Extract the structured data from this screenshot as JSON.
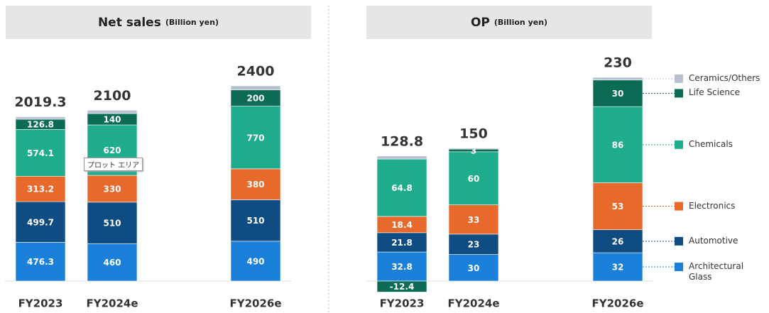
{
  "legend": {
    "items": [
      {
        "name": "Architectural Glass",
        "color": "#1a80d9"
      },
      {
        "name": "Automotive",
        "color": "#0f4c81"
      },
      {
        "name": "Electronics",
        "color": "#e8692c"
      },
      {
        "name": "Chemicals",
        "color": "#1fac8c"
      },
      {
        "name": "Life Science",
        "color": "#0b6b54"
      },
      {
        "name": "Ceramics/Others",
        "color": "#b9bfcf",
        "labeled": false
      }
    ]
  },
  "tooltip": "プロット エリア",
  "chart_data": [
    {
      "type": "bar",
      "stacked": true,
      "title": "Net sales",
      "subtitle": "(Billion yen)",
      "categories": [
        "FY2023",
        "FY2024e",
        "FY2026e"
      ],
      "totals": [
        2019.3,
        2100,
        2400
      ],
      "series": [
        {
          "values": [
            476.3,
            460,
            490
          ]
        },
        {
          "values": [
            499.7,
            510,
            510
          ]
        },
        {
          "values": [
            313.2,
            330,
            380
          ]
        },
        {
          "values": [
            574.1,
            620,
            770
          ]
        },
        {
          "values": [
            126.8,
            140,
            200
          ]
        },
        {
          "values": [
            29.2,
            40,
            50
          ]
        }
      ]
    },
    {
      "type": "bar",
      "stacked": true,
      "title": "OP",
      "subtitle": "(Billion yen)",
      "categories": [
        "FY2023",
        "FY2024e",
        "FY2026e"
      ],
      "totals": [
        128.8,
        150,
        230
      ],
      "series": [
        {
          "values": [
            32.8,
            30,
            32
          ]
        },
        {
          "values": [
            21.8,
            23,
            26
          ]
        },
        {
          "values": [
            18.4,
            33,
            53
          ]
        },
        {
          "values": [
            64.8,
            60,
            86
          ]
        },
        {
          "values": [
            -12.4,
            3,
            30
          ]
        },
        {
          "values": [
            3.4,
            1,
            3
          ]
        }
      ]
    }
  ]
}
